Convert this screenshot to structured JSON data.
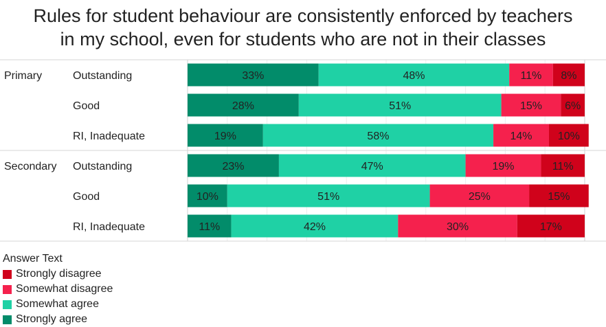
{
  "title": {
    "line1": "Rules for student behaviour are consistently enforced by teachers",
    "line2": "in my school, even for students who are not in their classes"
  },
  "legend": {
    "title": "Answer Text",
    "items": [
      {
        "label": "Strongly disagree",
        "color": "#d0021b"
      },
      {
        "label": "Somewhat disagree",
        "color": "#f5214d"
      },
      {
        "label": "Somewhat agree",
        "color": "#1fd1a5"
      },
      {
        "label": "Strongly agree",
        "color": "#028c6a"
      }
    ]
  },
  "chart_data": {
    "type": "bar",
    "stacked": true,
    "orientation": "horizontal",
    "groups": [
      "Primary",
      "Secondary"
    ],
    "categories": [
      "Outstanding",
      "Good",
      "RI, Inadequate",
      "Outstanding",
      "Good",
      "RI, Inadequate"
    ],
    "group_of_category": [
      "Primary",
      "Primary",
      "Primary",
      "Secondary",
      "Secondary",
      "Secondary"
    ],
    "series": [
      {
        "name": "Strongly agree",
        "color": "#028c6a",
        "values": [
          33,
          28,
          19,
          23,
          10,
          11
        ]
      },
      {
        "name": "Somewhat agree",
        "color": "#1fd1a5",
        "values": [
          48,
          51,
          58,
          47,
          51,
          42
        ]
      },
      {
        "name": "Somewhat disagree",
        "color": "#f5214d",
        "values": [
          11,
          15,
          14,
          19,
          25,
          30
        ]
      },
      {
        "name": "Strongly disagree",
        "color": "#d0021b",
        "values": [
          8,
          6,
          10,
          11,
          15,
          17
        ]
      }
    ],
    "xlim": [
      0,
      100
    ],
    "value_suffix": "%",
    "grid": true,
    "legend_position": "bottom-left"
  }
}
